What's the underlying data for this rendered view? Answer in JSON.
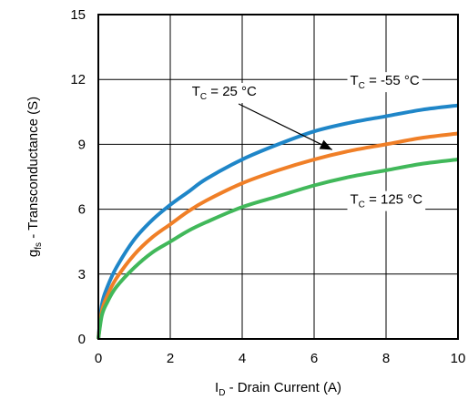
{
  "chart_data": {
    "type": "line",
    "xlabel": {
      "prefix": "I",
      "sub": "D",
      "suffix": " - Drain Current (A)"
    },
    "ylabel": {
      "prefix": "g",
      "sub": "fs",
      "suffix": " - Transconductance (S)"
    },
    "xlim": [
      0,
      10
    ],
    "ylim": [
      0,
      15
    ],
    "xticks": [
      "0",
      "2",
      "4",
      "6",
      "8",
      "10"
    ],
    "yticks": [
      "0",
      "3",
      "6",
      "9",
      "12",
      "15"
    ],
    "grid": true,
    "series": [
      {
        "name": "TC = -55 °C",
        "color": "#1f86c8",
        "x": [
          0,
          0.1,
          0.25,
          0.5,
          1,
          1.5,
          2,
          2.5,
          3,
          4,
          5,
          6,
          7,
          8,
          9,
          10
        ],
        "y": [
          0,
          1.6,
          2.4,
          3.3,
          4.6,
          5.5,
          6.2,
          6.8,
          7.4,
          8.3,
          9.0,
          9.6,
          10.0,
          10.3,
          10.6,
          10.8
        ]
      },
      {
        "name": "TC = 25 °C",
        "color": "#f07f27",
        "x": [
          0,
          0.1,
          0.25,
          0.5,
          1,
          1.5,
          2,
          2.5,
          3,
          4,
          5,
          6,
          7,
          8,
          9,
          10
        ],
        "y": [
          0,
          1.3,
          2.0,
          2.8,
          3.9,
          4.7,
          5.3,
          5.9,
          6.4,
          7.2,
          7.8,
          8.3,
          8.7,
          9.0,
          9.3,
          9.5
        ]
      },
      {
        "name": "TC = 125 °C",
        "color": "#41b85a",
        "x": [
          0,
          0.1,
          0.25,
          0.5,
          1,
          1.5,
          2,
          2.5,
          3,
          4,
          5,
          6,
          7,
          8,
          9,
          10
        ],
        "y": [
          0,
          1.1,
          1.7,
          2.4,
          3.3,
          4.0,
          4.5,
          5.0,
          5.4,
          6.1,
          6.6,
          7.1,
          7.5,
          7.8,
          8.1,
          8.3
        ]
      }
    ],
    "annotations": [
      {
        "prefix": "T",
        "sub": "C",
        "suffix": " = 25 °C",
        "x": 2.6,
        "y": 11.25,
        "arrow_to": [
          6.5,
          8.75
        ]
      },
      {
        "prefix": "T",
        "sub": "C",
        "suffix": " = -55 °C",
        "x": 7.0,
        "y": 11.75
      },
      {
        "prefix": "T",
        "sub": "C",
        "suffix": " = 125 °C",
        "x": 7.0,
        "y": 6.25
      }
    ]
  }
}
